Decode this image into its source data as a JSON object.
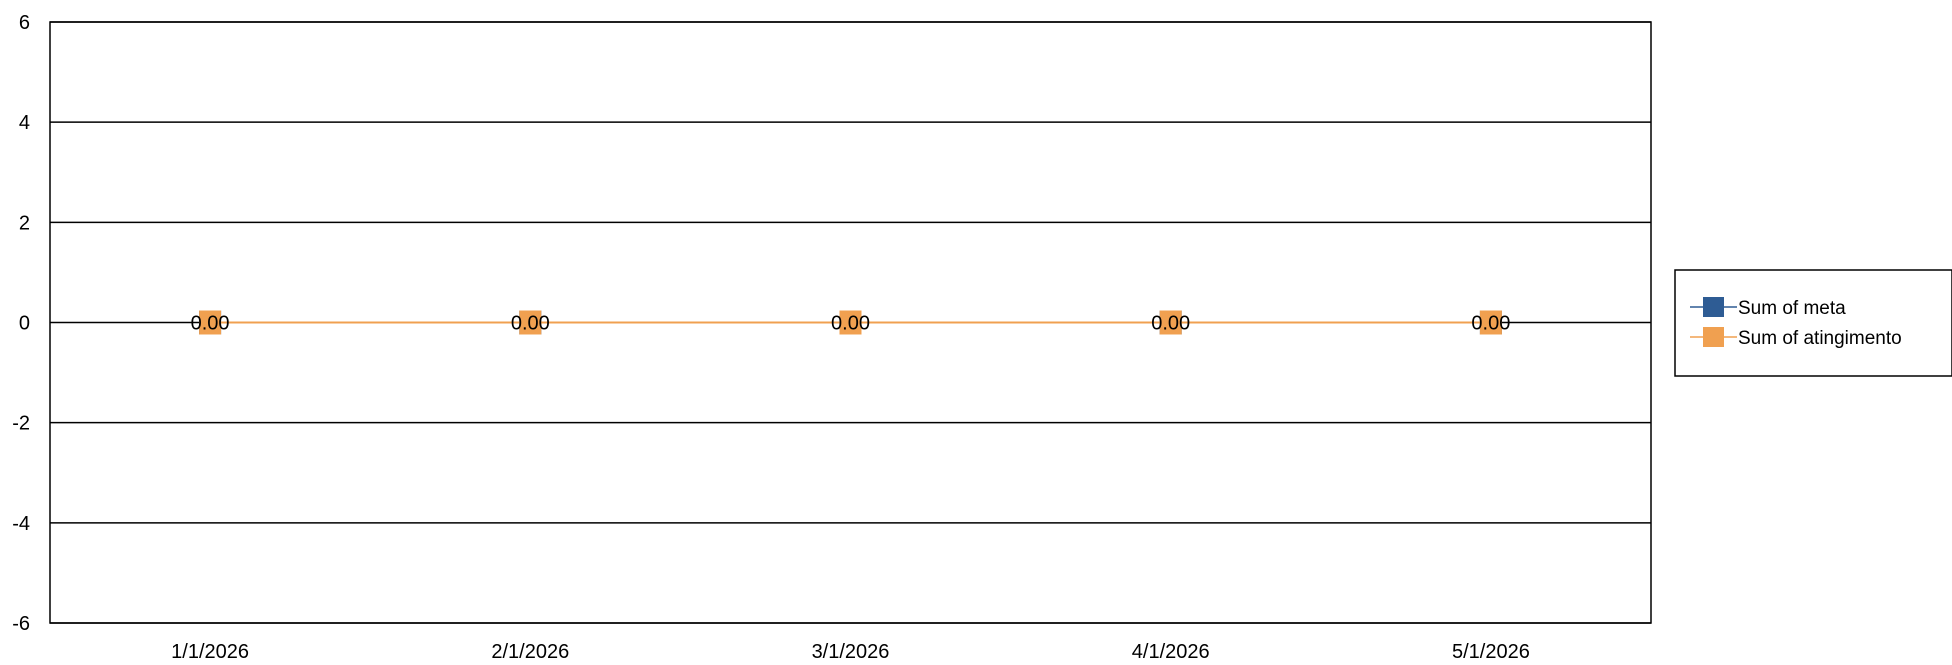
{
  "chart_data": {
    "type": "line",
    "categories": [
      "1/1/2026",
      "2/1/2026",
      "3/1/2026",
      "4/1/2026",
      "5/1/2026"
    ],
    "series": [
      {
        "name": "Sum of meta",
        "values": [
          0,
          0,
          0,
          0,
          0
        ],
        "color": "#2e5c94"
      },
      {
        "name": "Sum of atingimento",
        "values": [
          0,
          0,
          0,
          0,
          0
        ],
        "color": "#f0a050"
      }
    ],
    "data_labels": [
      "0.00",
      "0.00",
      "0.00",
      "0.00",
      "0.00"
    ],
    "ylim": [
      -6,
      6
    ],
    "yticks": [
      6,
      4,
      2,
      0,
      -2,
      -4,
      -6
    ],
    "grid": true,
    "legend_position": "right"
  }
}
